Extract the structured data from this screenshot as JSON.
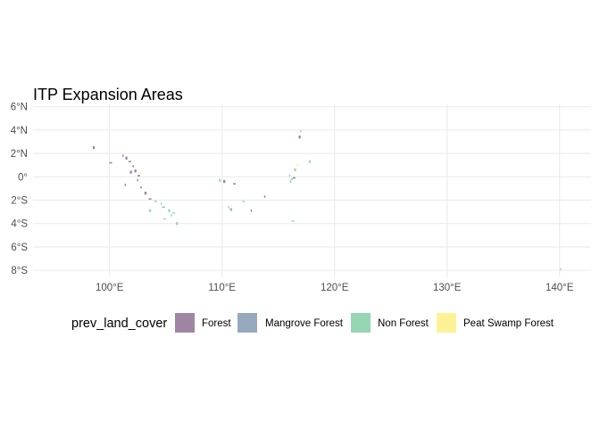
{
  "title": "ITP Expansion Areas",
  "map": {
    "lon_range": [
      93.2,
      142.8
    ],
    "lat_range": [
      -8.6,
      6.2
    ],
    "lon_ticks": [
      {
        "value": 100,
        "label": "100°E"
      },
      {
        "value": 110,
        "label": "110°E"
      },
      {
        "value": 120,
        "label": "120°E"
      },
      {
        "value": 130,
        "label": "130°E"
      },
      {
        "value": 140,
        "label": "140°E"
      }
    ],
    "lat_ticks": [
      {
        "value": 6,
        "label": "6°N"
      },
      {
        "value": 4,
        "label": "4°N"
      },
      {
        "value": 2,
        "label": "2°N"
      },
      {
        "value": 0,
        "label": "0°"
      },
      {
        "value": -2,
        "label": "2°S"
      },
      {
        "value": -4,
        "label": "4°S"
      },
      {
        "value": -6,
        "label": "6°S"
      },
      {
        "value": -8,
        "label": "8°S"
      }
    ],
    "colors": {
      "Forest": "#440154",
      "Mangrove Forest": "#31688e",
      "Non Forest": "#35b779",
      "Peat Swamp Forest": "#fde725",
      "grid": "#ebebeb"
    },
    "areas": [
      {
        "category": "Forest",
        "lon": 101.2,
        "lat": 1.8
      },
      {
        "category": "Forest",
        "lon": 101.5,
        "lat": 1.6
      },
      {
        "category": "Forest",
        "lon": 101.8,
        "lat": 1.3
      },
      {
        "category": "Forest",
        "lon": 102.1,
        "lat": 0.9
      },
      {
        "category": "Forest",
        "lon": 102.3,
        "lat": 0.5
      },
      {
        "category": "Forest",
        "lon": 102.6,
        "lat": 0.1
      },
      {
        "category": "Forest",
        "lon": 102.5,
        "lat": -0.3
      },
      {
        "category": "Forest",
        "lon": 101.9,
        "lat": 0.4
      },
      {
        "category": "Forest",
        "lon": 100.1,
        "lat": 1.2
      },
      {
        "category": "Forest",
        "lon": 102.8,
        "lat": -0.9
      },
      {
        "category": "Forest",
        "lon": 103.2,
        "lat": -1.4
      },
      {
        "category": "Forest",
        "lon": 103.6,
        "lat": -1.9
      },
      {
        "category": "Forest",
        "lon": 101.4,
        "lat": -0.7
      },
      {
        "category": "Forest",
        "lon": 110.2,
        "lat": -0.4
      },
      {
        "category": "Forest",
        "lon": 111.1,
        "lat": -0.6
      },
      {
        "category": "Forest",
        "lon": 113.8,
        "lat": -1.7
      },
      {
        "category": "Forest",
        "lon": 116.9,
        "lat": 3.4
      },
      {
        "category": "Forest",
        "lon": 116.4,
        "lat": -0.1
      },
      {
        "category": "Forest",
        "lon": 112.6,
        "lat": -2.9
      },
      {
        "category": "Forest",
        "lon": 98.6,
        "lat": 2.5
      },
      {
        "category": "Mangrove Forest",
        "lon": 104.8,
        "lat": -2.6
      },
      {
        "category": "Mangrove Forest",
        "lon": 116.1,
        "lat": -0.4
      },
      {
        "category": "Mangrove Forest",
        "lon": 110.8,
        "lat": -2.8
      },
      {
        "category": "Non Forest",
        "lon": 104.1,
        "lat": -2.1
      },
      {
        "category": "Non Forest",
        "lon": 104.6,
        "lat": -2.3
      },
      {
        "category": "Non Forest",
        "lon": 105.3,
        "lat": -2.9
      },
      {
        "category": "Non Forest",
        "lon": 105.7,
        "lat": -3.1
      },
      {
        "category": "Non Forest",
        "lon": 105.5,
        "lat": -3.3
      },
      {
        "category": "Non Forest",
        "lon": 103.6,
        "lat": -2.9
      },
      {
        "category": "Non Forest",
        "lon": 104.9,
        "lat": -3.6
      },
      {
        "category": "Non Forest",
        "lon": 116.0,
        "lat": 0.1
      },
      {
        "category": "Non Forest",
        "lon": 116.5,
        "lat": 0.6
      },
      {
        "category": "Non Forest",
        "lon": 116.2,
        "lat": -0.2
      },
      {
        "category": "Non Forest",
        "lon": 117.0,
        "lat": 3.9
      },
      {
        "category": "Non Forest",
        "lon": 117.8,
        "lat": 1.3
      },
      {
        "category": "Non Forest",
        "lon": 111.9,
        "lat": -2.1
      },
      {
        "category": "Non Forest",
        "lon": 110.6,
        "lat": -2.6
      },
      {
        "category": "Non Forest",
        "lon": 109.8,
        "lat": -0.3
      },
      {
        "category": "Non Forest",
        "lon": 116.3,
        "lat": -3.8
      },
      {
        "category": "Non Forest",
        "lon": 140.1,
        "lat": -7.9
      },
      {
        "category": "Non Forest",
        "lon": 106.0,
        "lat": -4.0
      },
      {
        "category": "Peat Swamp Forest",
        "lon": 102.7,
        "lat": 0.3
      },
      {
        "category": "Peat Swamp Forest",
        "lon": 116.7,
        "lat": 1.0
      }
    ]
  },
  "legend": {
    "title": "prev_land_cover",
    "items": [
      {
        "label": "Forest",
        "color": "#9e86a3"
      },
      {
        "label": "Mangrove Forest",
        "color": "#97a9bd"
      },
      {
        "label": "Non Forest",
        "color": "#96d6b3"
      },
      {
        "label": "Peat Swamp Forest",
        "color": "#fef297"
      }
    ]
  }
}
